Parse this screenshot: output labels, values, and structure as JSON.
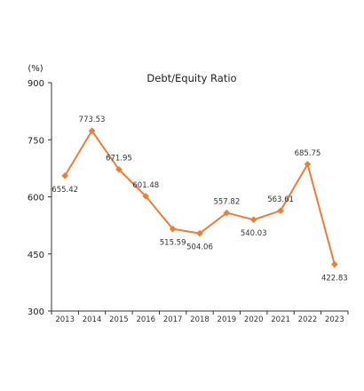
{
  "chart_data": {
    "type": "line",
    "title": "Debt∕Equity Ratio",
    "unit": "(%)",
    "xlabel": "",
    "ylabel": "",
    "ylim": [
      300,
      900
    ],
    "yticks": [
      300,
      450,
      600,
      750,
      900
    ],
    "ytick_labels": [
      "300",
      "450",
      "600",
      "750",
      "900"
    ],
    "categories": [
      "2013",
      "2014",
      "2015",
      "2016",
      "2017",
      "2018",
      "2019",
      "2020",
      "2021",
      "2022",
      "2023"
    ],
    "series": [
      {
        "values": [
          655.42,
          773.53,
          671.95,
          601.48,
          515.59,
          504.06,
          557.82,
          540.03,
          563.61,
          685.75,
          422.83
        ],
        "labels": [
          "655.42",
          "773.53",
          "671.95",
          "601.48",
          "515.59",
          "504.06",
          "557.82",
          "540.03",
          "563.61",
          "685.75",
          "422.83"
        ],
        "color": "#ED7D31"
      }
    ],
    "grid": false,
    "legend": "none"
  }
}
